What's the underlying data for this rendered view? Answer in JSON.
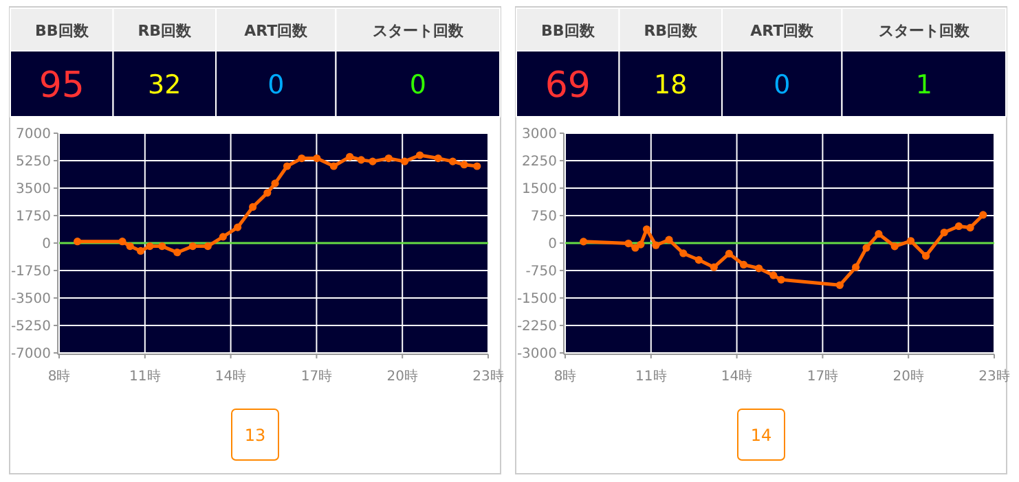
{
  "chart_data": [
    {
      "type": "other",
      "categories": [
        "BB回数",
        "RB回数",
        "ART回数",
        "スタート回数"
      ],
      "annotations": [
        "95",
        "32",
        "0",
        "0"
      ]
    },
    {
      "type": "line",
      "xlim": [
        8,
        23
      ],
      "xticks": [
        {
          "value": 8,
          "label": "8時"
        },
        {
          "value": 11,
          "label": "11時"
        },
        {
          "value": 14,
          "label": "14時"
        },
        {
          "value": 17,
          "label": "17時"
        },
        {
          "value": 20,
          "label": "20時"
        },
        {
          "value": 23,
          "label": "23時"
        }
      ],
      "ylim": [
        -7000,
        7000
      ],
      "yticks": [
        -7000,
        -5250,
        -3500,
        -1750,
        0,
        1750,
        3500,
        5250,
        7000
      ],
      "grid": true,
      "marker": "circle",
      "line_style": "solid",
      "ref_lines": [
        {
          "axis": "y",
          "value": 0,
          "color": "#66dd44"
        }
      ],
      "annotations": [
        "13"
      ],
      "series": [
        {
          "color": "#ff6600",
          "x": [
            8.64,
            10.21,
            10.48,
            10.85,
            11.17,
            11.6,
            12.13,
            12.67,
            13.2,
            13.73,
            14.24,
            14.77,
            15.28,
            15.55,
            15.97,
            16.48,
            17.01,
            17.6,
            18.16,
            18.56,
            18.96,
            19.52,
            20.08,
            20.61,
            21.25,
            21.76,
            22.16,
            22.61
          ],
          "values": [
            100,
            100,
            -200,
            -500,
            -200,
            -200,
            -600,
            -200,
            -200,
            400,
            1000,
            2300,
            3200,
            3800,
            4900,
            5400,
            5400,
            4900,
            5500,
            5300,
            5200,
            5400,
            5200,
            5600,
            5400,
            5200,
            5000,
            4900
          ]
        }
      ]
    },
    {
      "type": "other",
      "categories": [
        "BB回数",
        "RB回数",
        "ART回数",
        "スタート回数"
      ],
      "annotations": [
        "69",
        "18",
        "0",
        "1"
      ]
    },
    {
      "type": "line",
      "xlim": [
        8,
        23
      ],
      "xticks": [
        {
          "value": 8,
          "label": "8時"
        },
        {
          "value": 11,
          "label": "11時"
        },
        {
          "value": 14,
          "label": "14時"
        },
        {
          "value": 17,
          "label": "17時"
        },
        {
          "value": 20,
          "label": "20時"
        },
        {
          "value": 23,
          "label": "23時"
        }
      ],
      "ylim": [
        -3000,
        3000
      ],
      "yticks": [
        -3000,
        -2250,
        -1500,
        -750,
        0,
        750,
        1500,
        2250,
        3000
      ],
      "grid": true,
      "marker": "circle",
      "line_style": "solid",
      "ref_lines": [
        {
          "axis": "y",
          "value": 0,
          "color": "#66dd44"
        }
      ],
      "annotations": [
        "14"
      ],
      "series": [
        {
          "color": "#ff6600",
          "x": [
            8.64,
            10.21,
            10.45,
            10.64,
            10.85,
            11.17,
            11.63,
            12.13,
            12.67,
            13.2,
            13.73,
            14.24,
            14.77,
            15.28,
            15.55,
            17.6,
            18.16,
            18.53,
            18.96,
            19.52,
            20.08,
            20.61,
            21.25,
            21.76,
            22.16,
            22.61
          ],
          "values": [
            40,
            -10,
            -130,
            -40,
            380,
            -60,
            90,
            -280,
            -460,
            -660,
            -290,
            -590,
            -690,
            -880,
            -1000,
            -1150,
            -660,
            -130,
            250,
            -90,
            60,
            -350,
            290,
            460,
            420,
            770
          ]
        }
      ]
    }
  ]
}
